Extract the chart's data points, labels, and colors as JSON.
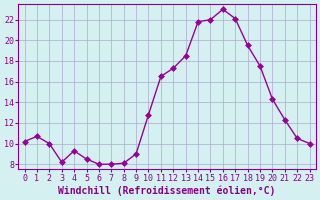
{
  "x": [
    0,
    1,
    2,
    3,
    4,
    5,
    6,
    7,
    8,
    9,
    10,
    11,
    12,
    13,
    14,
    15,
    16,
    17,
    18,
    19,
    20,
    21,
    22,
    23
  ],
  "y": [
    10.2,
    10.7,
    10.0,
    8.2,
    9.3,
    8.5,
    8.0,
    8.0,
    8.1,
    9.0,
    12.8,
    16.5,
    17.3,
    18.5,
    21.8,
    22.0,
    23.0,
    22.1,
    19.5,
    17.5,
    14.3,
    12.3,
    10.5,
    10.0
  ],
  "line_color": "#990099",
  "marker": "D",
  "markersize": 3,
  "linewidth": 1.0,
  "xlabel": "Windchill (Refroidissement éolien,°C)",
  "ylabel": "",
  "xlim": [
    -0.5,
    23.5
  ],
  "ylim": [
    7.5,
    23.5
  ],
  "yticks": [
    8,
    10,
    12,
    14,
    16,
    18,
    20,
    22
  ],
  "xticks": [
    0,
    1,
    2,
    3,
    4,
    5,
    6,
    7,
    8,
    9,
    10,
    11,
    12,
    13,
    14,
    15,
    16,
    17,
    18,
    19,
    20,
    21,
    22,
    23
  ],
  "bg_color": "#d4f0f0",
  "grid_color": "#aaaacc",
  "tick_color": "#880088",
  "xlabel_color": "#880088",
  "ylabel_color": "#880088",
  "tick_fontsize": 6,
  "xlabel_fontsize": 7
}
